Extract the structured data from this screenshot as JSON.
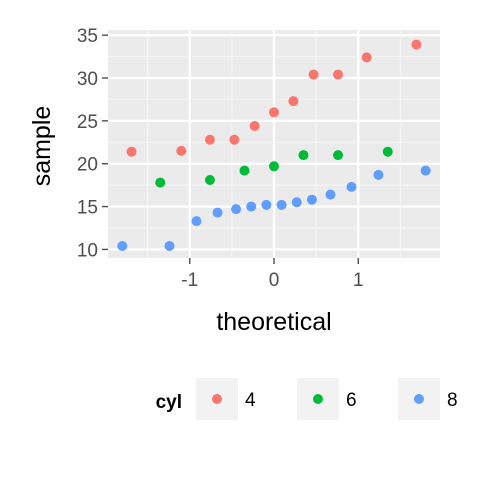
{
  "chart_data": {
    "type": "scatter",
    "title": "",
    "xlabel": "theoretical",
    "ylabel": "sample",
    "xlim": [
      -1.97,
      1.97
    ],
    "ylim": [
      9.0,
      35.6
    ],
    "x_ticks": [
      -1,
      0,
      1
    ],
    "x_tick_labels": [
      "-1",
      "0",
      "1"
    ],
    "y_ticks": [
      10,
      15,
      20,
      25,
      30,
      35
    ],
    "y_tick_labels": [
      "10",
      "15",
      "20",
      "25",
      "30",
      "35"
    ],
    "grid": true,
    "legend": {
      "title": "cyl",
      "position": "bottom"
    },
    "series": [
      {
        "name": "4",
        "color": "#F8766D",
        "x": [
          -1.69,
          -1.1,
          -0.76,
          -0.47,
          -0.23,
          0.0,
          0.23,
          0.47,
          0.76,
          1.1,
          1.69
        ],
        "y": [
          21.4,
          21.5,
          22.8,
          22.8,
          24.4,
          26.0,
          27.3,
          30.4,
          30.4,
          32.4,
          33.9
        ]
      },
      {
        "name": "6",
        "color": "#00BA38",
        "x": [
          -1.35,
          -0.76,
          -0.35,
          0.0,
          0.35,
          0.76,
          1.35
        ],
        "y": [
          17.8,
          18.1,
          19.2,
          19.7,
          21.0,
          21.0,
          21.4
        ]
      },
      {
        "name": "8",
        "color": "#619CFF",
        "x": [
          -1.8,
          -1.24,
          -0.92,
          -0.67,
          -0.45,
          -0.27,
          -0.09,
          0.09,
          0.27,
          0.45,
          0.67,
          0.92,
          1.24,
          1.8
        ],
        "y": [
          10.4,
          10.4,
          13.3,
          14.3,
          14.7,
          15.0,
          15.2,
          15.2,
          15.5,
          15.8,
          16.4,
          17.3,
          18.7,
          19.2
        ]
      }
    ]
  }
}
